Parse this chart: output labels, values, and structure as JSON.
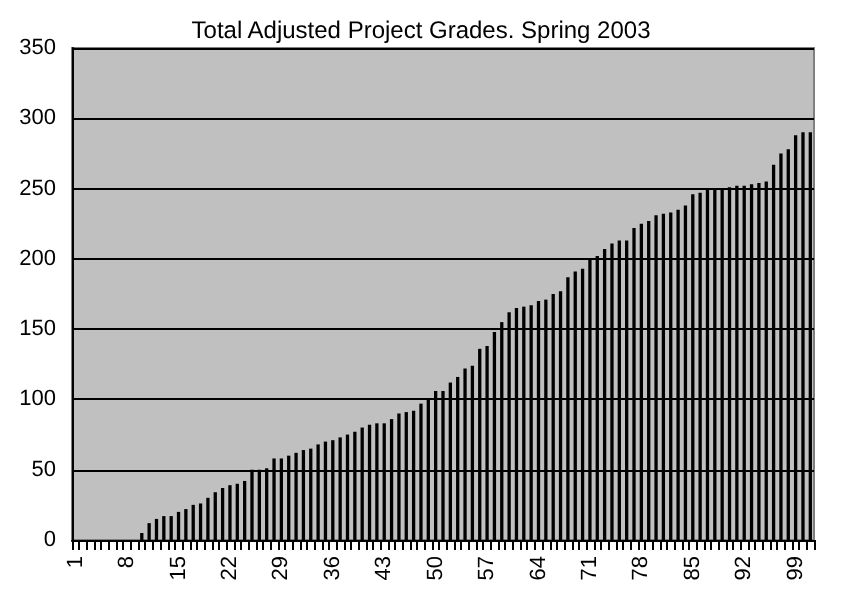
{
  "chart_data": {
    "type": "bar",
    "title": "Total Adjusted Project Grades. Spring 2003",
    "categories": [
      "1",
      null,
      null,
      null,
      null,
      null,
      null,
      "8",
      null,
      null,
      null,
      null,
      null,
      null,
      "15",
      null,
      null,
      null,
      null,
      null,
      null,
      "22",
      null,
      null,
      null,
      null,
      null,
      null,
      "29",
      null,
      null,
      null,
      null,
      null,
      null,
      "36",
      null,
      null,
      null,
      null,
      null,
      null,
      "43",
      null,
      null,
      null,
      null,
      null,
      null,
      "50",
      null,
      null,
      null,
      null,
      null,
      null,
      "57",
      null,
      null,
      null,
      null,
      null,
      null,
      "64",
      null,
      null,
      null,
      null,
      null,
      null,
      "71",
      null,
      null,
      null,
      null,
      null,
      null,
      "78",
      null,
      null,
      null,
      null,
      null,
      null,
      "85",
      null,
      null,
      null,
      null,
      null,
      null,
      "92",
      null,
      null,
      null,
      null,
      null,
      null,
      "99",
      null,
      null
    ],
    "values": [
      0,
      0,
      0,
      0,
      0,
      0,
      0,
      0,
      0,
      5,
      12,
      15,
      17,
      17,
      20,
      22,
      25,
      26,
      30,
      34,
      37,
      39,
      40,
      42,
      50,
      50,
      51,
      58,
      58,
      60,
      62,
      64,
      65,
      68,
      70,
      71,
      73,
      75,
      77,
      80,
      82,
      83,
      83,
      86,
      90,
      91,
      92,
      97,
      100,
      106,
      106,
      112,
      116,
      122,
      124,
      136,
      138,
      148,
      155,
      162,
      165,
      166,
      167,
      170,
      171,
      175,
      177,
      187,
      191,
      193,
      200,
      202,
      207,
      211,
      213,
      213,
      222,
      225,
      227,
      231,
      232,
      233,
      235,
      238,
      246,
      247,
      249,
      250,
      250,
      251,
      252,
      252,
      253,
      254,
      255,
      267,
      275,
      278,
      288,
      290,
      290
    ],
    "color": "#000000",
    "ylim": [
      0,
      350
    ],
    "yticks": [
      0,
      50,
      100,
      150,
      200,
      250,
      300,
      350
    ],
    "grid": "y"
  }
}
